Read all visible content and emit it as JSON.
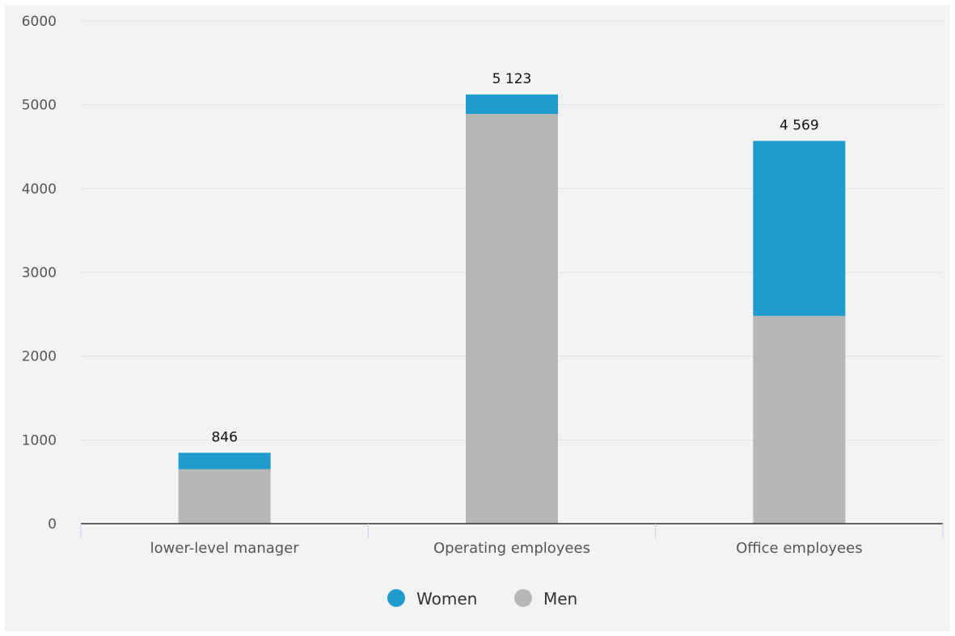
{
  "chart_data": {
    "type": "bar",
    "stacked": true,
    "categories": [
      "lower-level manager",
      "Operating employees",
      "Office employees"
    ],
    "series": [
      {
        "name": "Men",
        "color": "#b7b7b7",
        "values": [
          650,
          4890,
          2480
        ]
      },
      {
        "name": "Women",
        "color": "#209bce",
        "values": [
          196,
          233,
          2089
        ]
      }
    ],
    "totals": [
      846,
      5123,
      4569
    ],
    "total_labels": [
      "846",
      "5 123",
      "4 569"
    ],
    "ylim": [
      0,
      6000
    ],
    "yticks": [
      0,
      1000,
      2000,
      3000,
      4000,
      5000,
      6000
    ],
    "ytick_labels": [
      "0",
      "1000",
      "2000",
      "3000",
      "4000",
      "5000",
      "6000"
    ],
    "grid": true,
    "legend": {
      "position": "bottom-center",
      "order": [
        "Women",
        "Men"
      ]
    },
    "title": "",
    "xlabel": "",
    "ylabel": ""
  }
}
